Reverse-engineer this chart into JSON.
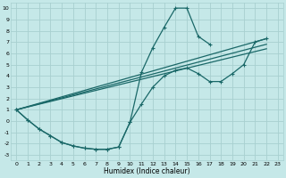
{
  "background_color": "#c5e8e8",
  "grid_color": "#a8d0d0",
  "line_color": "#1a6868",
  "xlabel": "Humidex (Indice chaleur)",
  "xlim": [
    -0.5,
    23.5
  ],
  "ylim": [
    -3.5,
    10.5
  ],
  "xticks": [
    0,
    1,
    2,
    3,
    4,
    5,
    6,
    7,
    8,
    9,
    10,
    11,
    12,
    13,
    14,
    15,
    16,
    17,
    18,
    19,
    20,
    21,
    22,
    23
  ],
  "yticks": [
    -3,
    -2,
    -1,
    0,
    1,
    2,
    3,
    4,
    5,
    6,
    7,
    8,
    9,
    10
  ],
  "line1_x": [
    0,
    1,
    2,
    3,
    4,
    5,
    6,
    7,
    8,
    9,
    10,
    11,
    12,
    13,
    14,
    15,
    16,
    17
  ],
  "line1_y": [
    1.0,
    0.1,
    -0.7,
    -1.3,
    -1.9,
    -2.2,
    -2.4,
    -2.5,
    -2.5,
    -2.3,
    -0.1,
    4.3,
    6.5,
    8.3,
    10.0,
    10.0,
    7.5,
    6.8
  ],
  "line2_x": [
    0,
    1,
    2,
    3,
    4,
    5,
    6,
    7,
    8,
    9,
    10,
    11,
    12,
    13,
    14,
    15,
    16,
    17,
    18,
    19,
    20,
    21,
    22
  ],
  "line2_y": [
    1.0,
    0.1,
    -0.7,
    -1.3,
    -1.9,
    -2.2,
    -2.4,
    -2.5,
    -2.5,
    -2.3,
    -0.1,
    1.5,
    3.0,
    4.0,
    4.5,
    4.7,
    4.2,
    3.5,
    3.5,
    4.2,
    5.0,
    7.0,
    7.3
  ],
  "line3_x": [
    0,
    22
  ],
  "line3_y": [
    1.0,
    7.3
  ],
  "line4_x": [
    0,
    22
  ],
  "line4_y": [
    1.0,
    6.8
  ],
  "line5_x": [
    0,
    22
  ],
  "line5_y": [
    1.0,
    6.4
  ]
}
